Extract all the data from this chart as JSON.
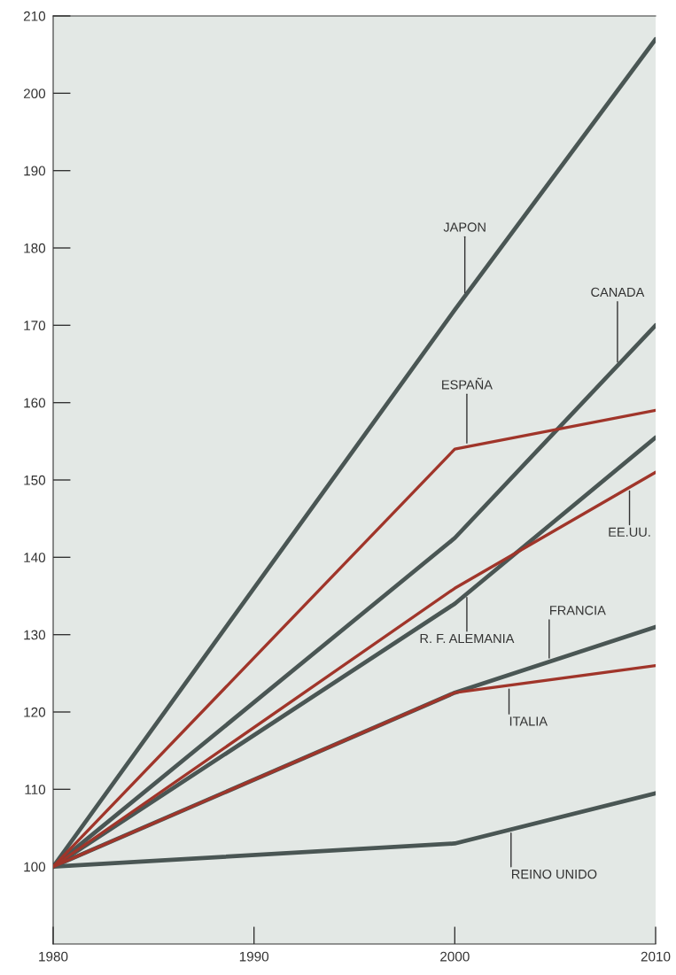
{
  "chart_data": {
    "type": "line",
    "x": [
      1980,
      2000,
      2010
    ],
    "series": [
      {
        "name": "JAPON",
        "color": "#4a5654",
        "values": [
          100,
          172,
          207
        ]
      },
      {
        "name": "CANADA",
        "color": "#4a5654",
        "values": [
          100,
          142.5,
          170
        ]
      },
      {
        "name": "ESPAÑA",
        "color": "#a0352a",
        "values": [
          100,
          154,
          159
        ]
      },
      {
        "name": "EE.UU.",
        "color": "#a0352a",
        "values": [
          100,
          136,
          151
        ]
      },
      {
        "name": "R. F. ALEMANIA",
        "color": "#4a5654",
        "values": [
          100,
          134,
          155.5
        ]
      },
      {
        "name": "FRANCIA",
        "color": "#4a5654",
        "values": [
          100,
          122.5,
          131
        ]
      },
      {
        "name": "ITALIA",
        "color": "#a0352a",
        "values": [
          100,
          122.5,
          126
        ]
      },
      {
        "name": "REINO UNIDO",
        "color": "#4a5654",
        "values": [
          100,
          103,
          109.5
        ]
      }
    ],
    "xlim": [
      1980,
      2010
    ],
    "xticks": [
      1980,
      1990,
      2000,
      2010
    ],
    "ylim": [
      90,
      210
    ],
    "yticks": [
      100,
      110,
      120,
      130,
      140,
      150,
      160,
      170,
      180,
      190,
      200,
      210
    ],
    "grid": false,
    "legend": false,
    "marker": "none",
    "line_style": "solid"
  }
}
